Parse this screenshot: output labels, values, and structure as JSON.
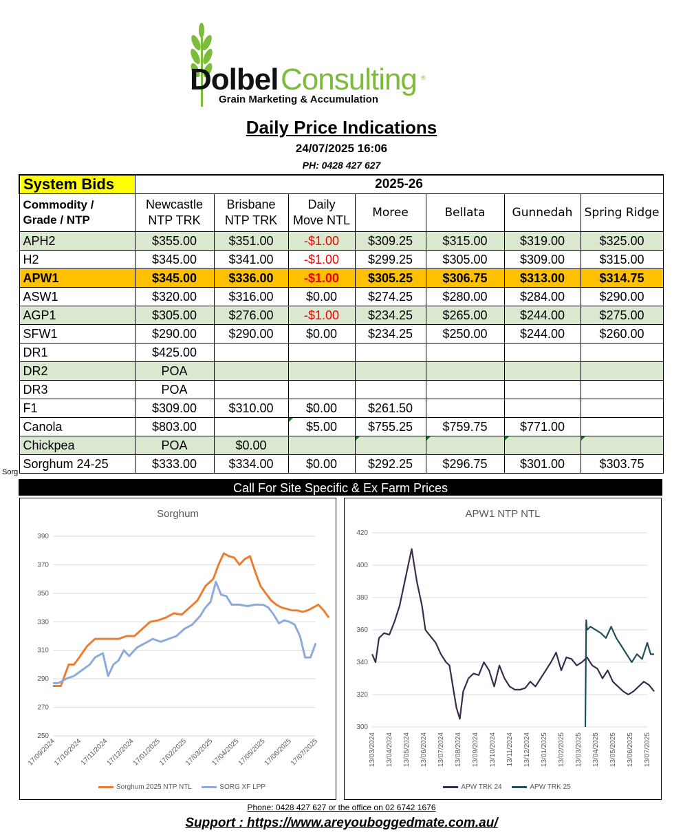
{
  "logo": {
    "brand_bold": "Dolbel",
    "brand_light": "Consulting",
    "reg_mark": "®",
    "tagline": "Grain Marketing & Accumulation",
    "icon": "wheat-icon"
  },
  "title": "Daily Price Indications",
  "datetime": "24/07/2025 16:06",
  "phone_top": "PH: 0428 427 627",
  "table": {
    "system_bids": "System Bids",
    "season": "2025-26",
    "headers": {
      "commodity_line1": "Commodity /",
      "commodity_line2": "Grade / NTP",
      "newcastle_line1": "Newcastle",
      "newcastle_line2": "NTP TRK",
      "brisbane_line1": "Brisbane",
      "brisbane_line2": "NTP TRK",
      "daily_line1": "Daily",
      "daily_line2": "Move NTL",
      "moree": "Moree",
      "bellata": "Bellata",
      "gunnedah": "Gunnedah",
      "spring_ridge": "Spring Ridge"
    },
    "rows": [
      {
        "commodity": "APH2",
        "newcastle": "$355.00",
        "brisbane": "$351.00",
        "daily": "-$1.00",
        "moree": "$309.25",
        "bellata": "$315.00",
        "gunnedah": "$319.00",
        "spring_ridge": "$325.00"
      },
      {
        "commodity": "H2",
        "newcastle": "$345.00",
        "brisbane": "$341.00",
        "daily": "-$1.00",
        "moree": "$299.25",
        "bellata": "$305.00",
        "gunnedah": "$309.00",
        "spring_ridge": "$315.00"
      },
      {
        "commodity": "APW1",
        "newcastle": "$345.00",
        "brisbane": "$336.00",
        "daily": "-$1.00",
        "moree": "$305.25",
        "bellata": "$306.75",
        "gunnedah": "$313.00",
        "spring_ridge": "$314.75"
      },
      {
        "commodity": "ASW1",
        "newcastle": "$320.00",
        "brisbane": "$316.00",
        "daily": "$0.00",
        "moree": "$274.25",
        "bellata": "$280.00",
        "gunnedah": "$284.00",
        "spring_ridge": "$290.00"
      },
      {
        "commodity": "AGP1",
        "newcastle": "$305.00",
        "brisbane": "$276.00",
        "daily": "-$1.00",
        "moree": "$234.25",
        "bellata": "$265.00",
        "gunnedah": "$244.00",
        "spring_ridge": "$275.00"
      },
      {
        "commodity": "SFW1",
        "newcastle": "$290.00",
        "brisbane": "$290.00",
        "daily": "$0.00",
        "moree": "$234.25",
        "bellata": "$250.00",
        "gunnedah": "$244.00",
        "spring_ridge": "$260.00"
      },
      {
        "commodity": "DR1",
        "newcastle": "$425.00",
        "brisbane": "",
        "daily": "",
        "moree": "",
        "bellata": "",
        "gunnedah": "",
        "spring_ridge": ""
      },
      {
        "commodity": "DR2",
        "newcastle": "POA",
        "brisbane": "",
        "daily": "",
        "moree": "",
        "bellata": "",
        "gunnedah": "",
        "spring_ridge": ""
      },
      {
        "commodity": "DR3",
        "newcastle": "POA",
        "brisbane": "",
        "daily": "",
        "moree": "",
        "bellata": "",
        "gunnedah": "",
        "spring_ridge": ""
      },
      {
        "commodity": "F1",
        "newcastle": "$309.00",
        "brisbane": "$310.00",
        "daily": "$0.00",
        "moree": "$261.50",
        "bellata": "",
        "gunnedah": "",
        "spring_ridge": ""
      },
      {
        "commodity": "Canola",
        "newcastle": "$803.00",
        "brisbane": "",
        "daily": "$5.00",
        "moree": "$755.25",
        "bellata": "$759.75",
        "gunnedah": "$771.00",
        "spring_ridge": ""
      },
      {
        "commodity": "Chickpea",
        "newcastle": "POA",
        "brisbane": "$0.00",
        "daily": "",
        "moree": "",
        "bellata": "",
        "gunnedah": "",
        "spring_ridge": ""
      },
      {
        "commodity": "Sorghum 24-25",
        "newcastle": "$333.00",
        "brisbane": "$334.00",
        "daily": "$0.00",
        "moree": "$292.25",
        "bellata": "$296.75",
        "gunnedah": "$301.00",
        "spring_ridge": "$303.75"
      }
    ],
    "clipped_label": "Sorg"
  },
  "call_bar": "Call For Site Specific & Ex Farm Prices",
  "chart_data": [
    {
      "type": "line",
      "title": "Sorghum",
      "ylim": [
        250,
        390
      ],
      "yticks": [
        "250",
        "270",
        "290",
        "310",
        "330",
        "350",
        "370",
        "390"
      ],
      "xticks": [
        "17/09/2024",
        "17/10/2024",
        "17/11/2024",
        "17/12/2024",
        "17/01/2025",
        "17/02/2025",
        "17/03/2025",
        "17/04/2025",
        "17/05/2025",
        "17/06/2025",
        "17/07/2025"
      ],
      "grid": true,
      "legend": "bottom",
      "series": [
        {
          "name": "Sorghum  2025 NTP NTL",
          "color": "#ed7d31",
          "x": [
            0,
            0.1,
            0.3,
            0.6,
            0.8,
            1.0,
            1.3,
            1.6,
            1.9,
            2.2,
            2.5,
            2.8,
            3.1,
            3.4,
            3.7,
            4.0,
            4.3,
            4.6,
            4.9,
            5.2,
            5.5,
            5.8,
            6.1,
            6.3,
            6.5,
            6.7,
            6.9,
            7.1,
            7.3,
            7.5,
            7.7,
            7.9,
            8.1,
            8.3,
            8.5,
            8.7,
            8.9,
            9.1,
            9.3,
            9.5,
            9.7,
            9.9,
            10.1,
            10.3,
            10.5
          ],
          "values": [
            285,
            285,
            285,
            300,
            300,
            305,
            313,
            318,
            318,
            318,
            318,
            320,
            320,
            325,
            330,
            331,
            333,
            336,
            335,
            340,
            345,
            355,
            360,
            370,
            378,
            376,
            375,
            370,
            374,
            376,
            365,
            355,
            350,
            345,
            342,
            340,
            339,
            338,
            338,
            337,
            338,
            340,
            342,
            338,
            333
          ]
        },
        {
          "name": "SORG XF LPP",
          "color": "#8eaadb",
          "x": [
            0,
            0.2,
            0.5,
            0.8,
            1.1,
            1.4,
            1.6,
            1.9,
            2.1,
            2.3,
            2.5,
            2.7,
            2.9,
            3.2,
            3.5,
            3.8,
            4.1,
            4.4,
            4.7,
            5.0,
            5.3,
            5.6,
            5.8,
            6.0,
            6.2,
            6.4,
            6.6,
            6.8,
            7.1,
            7.4,
            7.7,
            8.0,
            8.2,
            8.4,
            8.6,
            8.8,
            9.0,
            9.2,
            9.4,
            9.6,
            9.8,
            10.0
          ],
          "values": [
            287,
            287,
            290,
            292,
            296,
            300,
            305,
            308,
            292,
            300,
            303,
            310,
            306,
            312,
            315,
            318,
            316,
            318,
            320,
            325,
            328,
            334,
            340,
            344,
            358,
            349,
            348,
            342,
            342,
            341,
            342,
            342,
            340,
            335,
            329,
            331,
            330,
            328,
            320,
            305,
            305,
            315
          ]
        }
      ]
    },
    {
      "type": "line",
      "title": "APW1 NTP NTL",
      "ylim": [
        300,
        420
      ],
      "yticks": [
        "300",
        "320",
        "340",
        "360",
        "380",
        "400",
        "420"
      ],
      "xticks": [
        "13/03/2024",
        "13/04/2024",
        "13/05/2024",
        "13/06/2024",
        "13/07/2024",
        "13/08/2024",
        "13/09/2024",
        "13/10/2024",
        "13/11/2024",
        "13/12/2024",
        "13/01/2025",
        "13/02/2025",
        "13/03/2025",
        "13/04/2025",
        "13/05/2025",
        "13/06/2025",
        "13/07/2025"
      ],
      "grid": true,
      "legend": "bottom",
      "series": [
        {
          "name": "APW TRK 24",
          "color": "#3b2a4a",
          "x": [
            0,
            0.2,
            0.4,
            0.7,
            1.0,
            1.3,
            1.6,
            1.9,
            2.1,
            2.3,
            2.6,
            2.9,
            3.1,
            3.4,
            3.7,
            4.0,
            4.3,
            4.5,
            4.7,
            4.9,
            5.1,
            5.3,
            5.6,
            5.9,
            6.2,
            6.5,
            6.8,
            7.1,
            7.4,
            7.7,
            8.0,
            8.3,
            8.6,
            8.9,
            9.2,
            9.5,
            9.8,
            10.1,
            10.4,
            10.7,
            11.0,
            11.3,
            11.6,
            11.9,
            12.2,
            12.5,
            12.8,
            13.1,
            13.4,
            13.7,
            14.0,
            14.3,
            14.6,
            14.9,
            15.2,
            15.5,
            15.8,
            16.1,
            16.4
          ],
          "values": [
            345,
            340,
            355,
            358,
            357,
            365,
            375,
            390,
            400,
            410,
            390,
            375,
            360,
            356,
            352,
            345,
            340,
            338,
            325,
            312,
            305,
            322,
            330,
            333,
            332,
            340,
            335,
            325,
            338,
            330,
            325,
            323,
            323,
            324,
            328,
            325,
            330,
            335,
            340,
            346,
            335,
            343,
            342,
            338,
            340,
            343,
            338,
            336,
            330,
            335,
            328,
            325,
            322,
            320,
            322,
            325,
            328,
            326,
            322
          ]
        },
        {
          "name": "APW TRK 25",
          "color": "#1f4e5a",
          "x": [
            12.4,
            12.45,
            12.5,
            12.7,
            13.0,
            13.3,
            13.6,
            13.9,
            14.2,
            14.5,
            14.8,
            15.1,
            15.4,
            15.7,
            16.0,
            16.2,
            16.4
          ],
          "values": [
            300,
            366,
            360,
            362,
            360,
            358,
            355,
            362,
            355,
            350,
            345,
            340,
            345,
            342,
            352,
            345,
            345
          ]
        }
      ]
    }
  ],
  "footer": {
    "phone": "Phone: 0428 427 627 or the office on 02 6742 1676",
    "support": "Support : https://www.areyouboggedmate.com.au/"
  }
}
